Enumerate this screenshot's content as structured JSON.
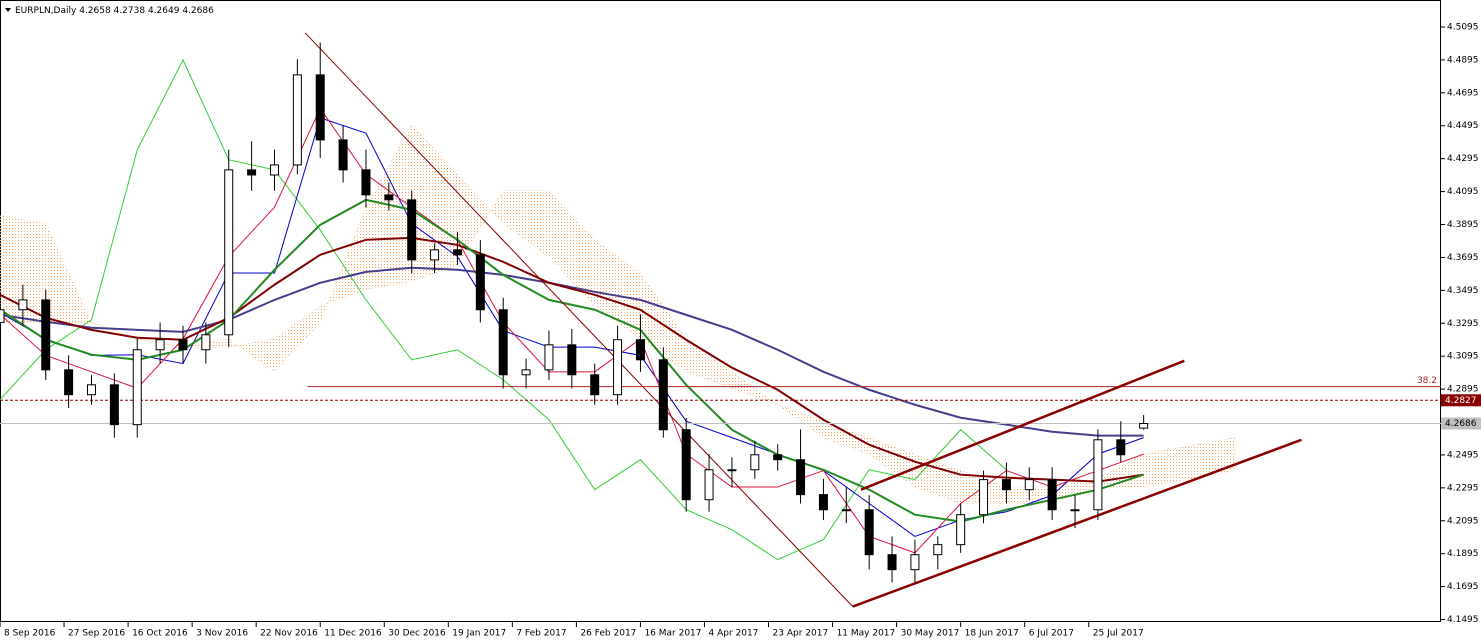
{
  "chart_data": {
    "type": "candlestick",
    "title": "EURPLN,Daily",
    "xlim": [
      0,
      315
    ],
    "ylim": [
      4.148,
      4.5259
    ],
    "xticks": [
      {
        "value": 0,
        "label": "8 Sep 2016"
      },
      {
        "value": 14,
        "label": "27 Sep 2016"
      },
      {
        "value": 28,
        "label": "16 Oct 2016"
      },
      {
        "value": 42,
        "label": "3 Nov 2016"
      },
      {
        "value": 56,
        "label": "22 Nov 2016"
      },
      {
        "value": 70,
        "label": "11 Dec 2016"
      },
      {
        "value": 84,
        "label": "30 Dec 2016"
      },
      {
        "value": 98,
        "label": "19 Jan 2017"
      },
      {
        "value": 112,
        "label": "7 Feb 2017"
      },
      {
        "value": 126,
        "label": "26 Feb 2017"
      },
      {
        "value": 140,
        "label": "16 Mar 2017"
      },
      {
        "value": 154,
        "label": "4 Apr 2017"
      },
      {
        "value": 168,
        "label": "23 Apr 2017"
      },
      {
        "value": 182,
        "label": "11 May 2017"
      },
      {
        "value": 196,
        "label": "30 May 2017"
      },
      {
        "value": 210,
        "label": "18 Jun 2017"
      },
      {
        "value": 224,
        "label": "6 Jul 2017"
      },
      {
        "value": 238,
        "label": "25 Jul 2017"
      }
    ],
    "yticks": [
      4.5095,
      4.4895,
      4.4695,
      4.4495,
      4.4295,
      4.4095,
      4.3895,
      4.3695,
      4.3495,
      4.3295,
      4.3095,
      4.2895,
      4.2495,
      4.2295,
      4.2095,
      4.1895,
      4.1695,
      4.1495
    ],
    "candles": {
      "up_color": "#ffffff",
      "down_color": "#000000",
      "edge_color": "#000000",
      "x": [
        0,
        5,
        10,
        15,
        20,
        25,
        30,
        35,
        40,
        45,
        50,
        55,
        60,
        65,
        70,
        75,
        80,
        85,
        90,
        95,
        100,
        105,
        110,
        115,
        120,
        125,
        130,
        135,
        140,
        145,
        150,
        155,
        160,
        165,
        170,
        175,
        180,
        185,
        190,
        195,
        200,
        205,
        210,
        215,
        220,
        225,
        230,
        235,
        240,
        245,
        250
      ],
      "open": [
        4.33,
        4.3377,
        4.3437,
        4.3012,
        4.2861,
        4.2921,
        4.2679,
        4.3134,
        4.3195,
        4.3134,
        4.3225,
        4.4227,
        4.4196,
        4.4257,
        4.4804,
        4.4409,
        4.4227,
        4.4075,
        4.4045,
        4.368,
        4.3741,
        4.3711,
        4.3377,
        4.2982,
        4.3012,
        4.3164,
        4.2982,
        4.2861,
        4.3195,
        4.3073,
        4.2648,
        4.2223,
        4.2405,
        4.2405,
        4.2496,
        4.2466,
        4.2254,
        4.2162,
        4.2162,
        4.1889,
        4.1798,
        4.1889,
        4.195,
        4.2132,
        4.2345,
        4.2284,
        4.2345,
        4.2162,
        4.2162,
        4.2587,
        4.2658
      ],
      "high": [
        4.348,
        4.353,
        4.35,
        4.31,
        4.298,
        4.299,
        4.32,
        4.33,
        4.328,
        4.33,
        4.435,
        4.44,
        4.435,
        4.49,
        4.5,
        4.45,
        4.435,
        4.415,
        4.41,
        4.378,
        4.385,
        4.38,
        4.345,
        4.308,
        4.325,
        4.326,
        4.305,
        4.328,
        4.335,
        4.315,
        4.272,
        4.25,
        4.248,
        4.258,
        4.256,
        4.265,
        4.235,
        4.23,
        4.225,
        4.2,
        4.198,
        4.2,
        4.22,
        4.24,
        4.245,
        4.242,
        4.242,
        4.225,
        4.265,
        4.27,
        4.2738
      ],
      "low": [
        4.32,
        4.328,
        4.295,
        4.278,
        4.28,
        4.26,
        4.26,
        4.305,
        4.305,
        4.305,
        4.315,
        4.41,
        4.41,
        4.42,
        4.43,
        4.415,
        4.4,
        4.398,
        4.36,
        4.36,
        4.365,
        4.33,
        4.29,
        4.29,
        4.295,
        4.29,
        4.28,
        4.28,
        4.3,
        4.26,
        4.215,
        4.215,
        4.23,
        4.235,
        4.24,
        4.22,
        4.21,
        4.208,
        4.18,
        4.172,
        4.172,
        4.18,
        4.19,
        4.208,
        4.22,
        4.222,
        4.21,
        4.205,
        4.21,
        4.245,
        4.2649
      ],
      "close": [
        4.3377,
        4.3437,
        4.3012,
        4.2861,
        4.2921,
        4.2679,
        4.3134,
        4.3195,
        4.3134,
        4.3225,
        4.4227,
        4.4196,
        4.4257,
        4.4804,
        4.4409,
        4.4227,
        4.4075,
        4.4045,
        4.368,
        4.3741,
        4.3711,
        4.3377,
        4.2982,
        4.3012,
        4.3164,
        4.2982,
        4.2861,
        4.3195,
        4.3073,
        4.2648,
        4.2223,
        4.2405,
        4.2405,
        4.2496,
        4.2466,
        4.2254,
        4.2162,
        4.2162,
        4.1889,
        4.1798,
        4.1889,
        4.195,
        4.2132,
        4.2345,
        4.2284,
        4.2345,
        4.2162,
        4.2162,
        4.2587,
        4.2496,
        4.2686
      ]
    },
    "cloud": {
      "color": "#f4a460",
      "x": [
        0,
        10,
        20,
        30,
        40,
        50,
        60,
        70,
        80,
        90,
        100,
        110,
        120,
        130,
        140,
        150,
        160,
        170,
        180,
        190,
        200,
        210,
        220,
        230,
        240,
        250,
        260,
        270
      ],
      "span_a": [
        4.395,
        4.39,
        4.33,
        4.32,
        4.315,
        4.32,
        4.3,
        4.33,
        4.4,
        4.45,
        4.42,
        4.39,
        4.37,
        4.34,
        4.32,
        4.3,
        4.29,
        4.28,
        4.26,
        4.25,
        4.23,
        4.22,
        4.22,
        4.22,
        4.23,
        4.23,
        4.235,
        4.24
      ],
      "span_b": [
        4.33,
        4.33,
        4.33,
        4.32,
        4.315,
        4.315,
        4.32,
        4.34,
        4.35,
        4.355,
        4.365,
        4.41,
        4.41,
        4.38,
        4.36,
        4.32,
        4.3,
        4.28,
        4.27,
        4.26,
        4.25,
        4.24,
        4.23,
        4.23,
        4.235,
        4.25,
        4.255,
        4.26
      ]
    },
    "line_x": [
      0,
      10,
      20,
      30,
      40,
      50,
      60,
      70,
      80,
      90,
      100,
      110,
      120,
      130,
      140,
      150,
      160,
      170,
      180,
      190,
      200,
      210,
      220,
      230,
      240,
      250
    ],
    "series": [
      {
        "color": "#32cd32",
        "width": 1,
        "values": [
          4.283,
          4.3134,
          4.3316,
          4.4348,
          4.4895,
          4.4288,
          4.4227,
          4.3862,
          4.3437,
          4.3073,
          4.3134,
          4.2952,
          4.2709,
          4.2284,
          4.2466,
          4.2162,
          4.2041,
          4.1859,
          4.198,
          4.2405,
          4.2345,
          4.2648,
          4.2405,
          null,
          null,
          null
        ]
      },
      {
        "color": "#0000cd",
        "width": 1,
        "values": [
          4.336,
          4.32,
          4.31,
          4.3104,
          4.305,
          4.36,
          4.36,
          4.4543,
          4.445,
          4.39,
          4.37,
          4.325,
          4.315,
          4.315,
          4.31,
          4.27,
          4.26,
          4.25,
          4.24,
          4.22,
          4.2,
          4.21,
          4.215,
          4.225,
          4.25,
          4.26
        ]
      },
      {
        "color": "#dc143c",
        "width": 1,
        "values": [
          4.335,
          4.31,
          4.3,
          4.29,
          4.32,
          4.37,
          4.4,
          4.46,
          4.42,
          4.4,
          4.38,
          4.33,
          4.3,
          4.3,
          4.32,
          4.25,
          4.23,
          4.23,
          4.24,
          4.2,
          4.19,
          4.22,
          4.24,
          4.23,
          4.24,
          4.25
        ]
      },
      {
        "color": "#483d8b",
        "width": 2,
        "values": [
          4.3346,
          4.3304,
          4.3268,
          4.3255,
          4.3243,
          4.3316,
          4.3437,
          4.3541,
          4.3607,
          4.3632,
          4.362,
          4.3589,
          4.3541,
          4.3486,
          4.3437,
          4.3346,
          4.3255,
          4.3134,
          4.3,
          4.2891,
          4.28,
          4.2721,
          4.2679,
          4.2636,
          4.2612,
          4.2612
        ]
      },
      {
        "color": "#800000",
        "width": 2,
        "values": [
          4.3468,
          4.3328,
          4.3255,
          4.3207,
          4.3195,
          4.3328,
          4.3529,
          4.3711,
          4.3802,
          4.3814,
          4.3771,
          4.3668,
          4.3541,
          4.3468,
          4.3377,
          4.3195,
          4.3025,
          4.2891,
          4.2709,
          4.2557,
          4.2454,
          4.2375,
          4.2357,
          4.2345,
          4.2333,
          4.2375
        ]
      },
      {
        "color": "#228b22",
        "width": 2,
        "values": [
          4.3377,
          4.3195,
          4.3104,
          4.3073,
          4.3134,
          4.3316,
          4.362,
          4.3893,
          4.4045,
          4.3984,
          4.3802,
          4.3589,
          4.3437,
          4.3377,
          4.3255,
          4.2921,
          4.2648,
          4.2496,
          4.2405,
          4.2284,
          4.2132,
          4.209,
          4.2162,
          4.2223,
          4.2284,
          4.2375
        ]
      }
    ],
    "trendlines": [
      {
        "color": "#8b0000",
        "width": 1,
        "x": [
          66.7,
          186.4
        ],
        "y": [
          4.5059,
          4.1574
        ]
      },
      {
        "color": "#8b0000",
        "width": 2.5,
        "x": [
          188.2,
          258.9
        ],
        "y": [
          4.2284,
          4.3067
        ]
      },
      {
        "color": "#8b0000",
        "width": 2.5,
        "x": [
          186.4,
          284.5
        ],
        "y": [
          4.1574,
          4.2587
        ]
      }
    ],
    "fib_level": {
      "ratio": 38.2,
      "value": 4.291,
      "x": [
        67.2,
        315
      ],
      "color": "#b22222"
    },
    "price_lines": [
      {
        "value": 4.2827,
        "style": "dashed",
        "color": "#8b0000",
        "text_color": "#ffffff"
      },
      {
        "value": 4.2686,
        "style": "solid",
        "color": "#c0c0c0",
        "text_color": "#000000"
      }
    ]
  }
}
